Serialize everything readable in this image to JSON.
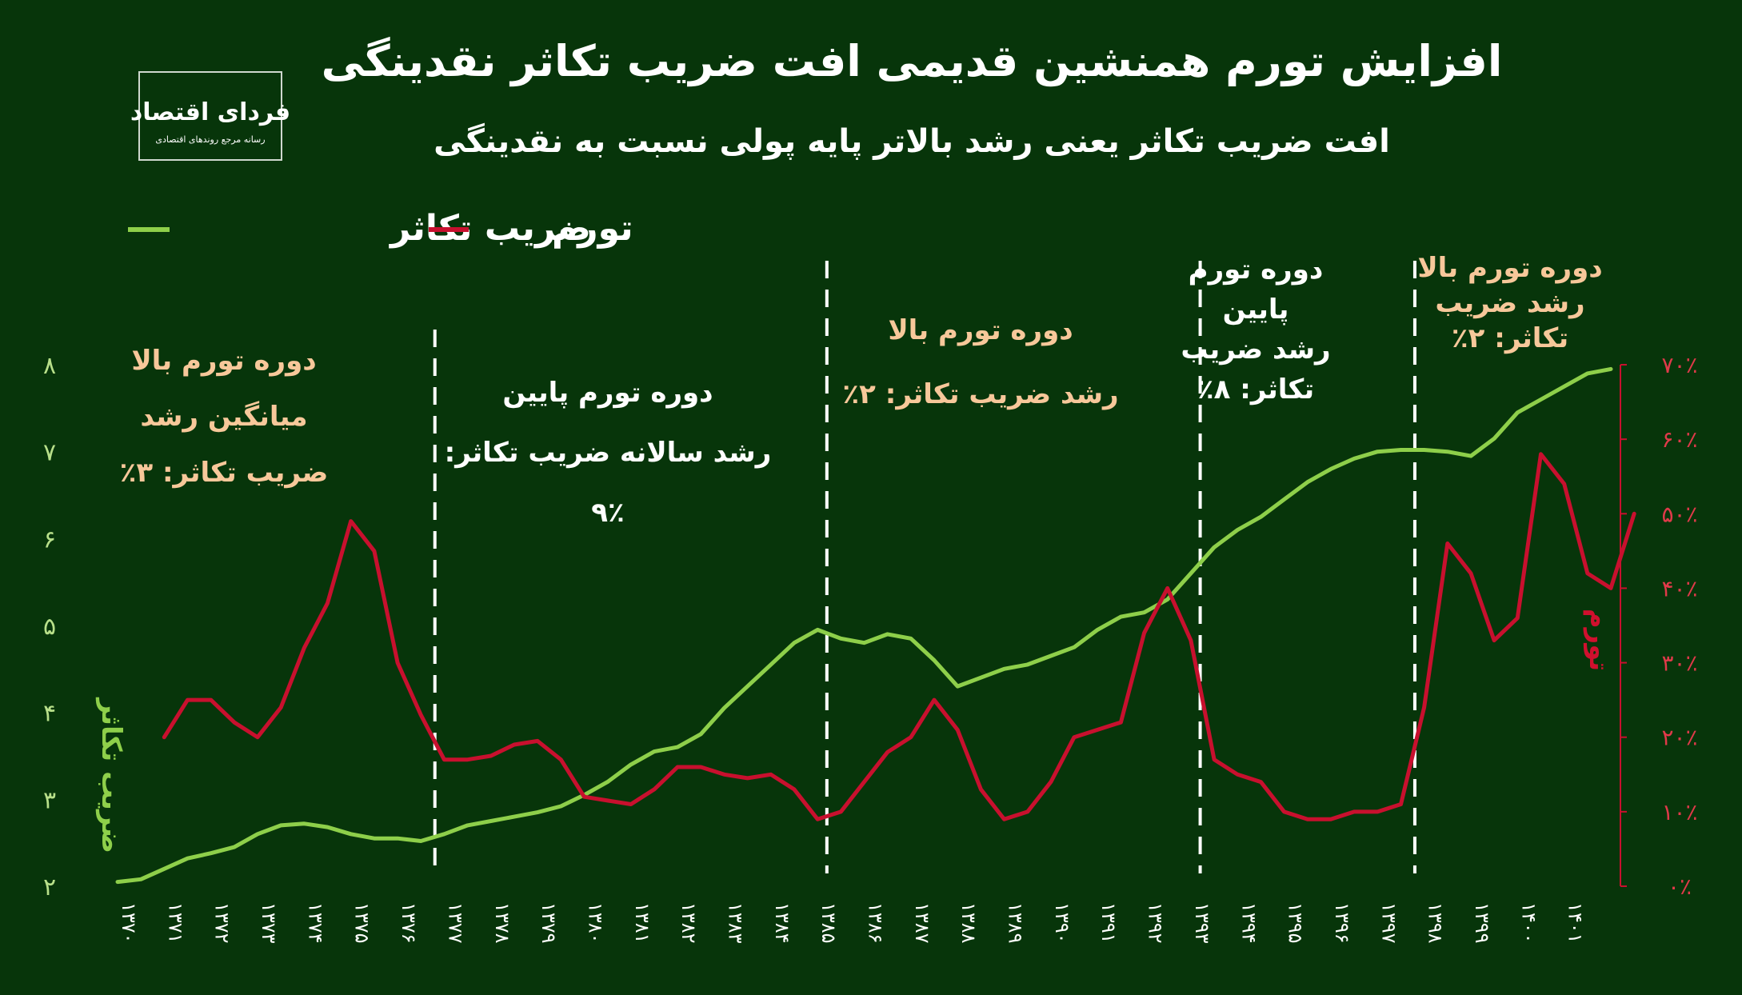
{
  "chart_data": {
    "type": "line",
    "title": "افزایش تورم همنشین قدیمی افت ضریب تکاثر نقدینگی",
    "subtitle": "افت ضریب تکاثر یعنی رشد بالاتر پایه پولی نسبت به نقدینگی",
    "logo_text": "فردای اقتصاد",
    "logo_tagline": "رسانه مرجع روندهای اقتصادی",
    "legend": [
      {
        "name": "ضریب تکاثر",
        "color": "#8ecf4a"
      },
      {
        "name": "تورم",
        "color": "#c8102e"
      }
    ],
    "ylabel_left": "ضریب تکاثر",
    "ylabel_right": "تورم",
    "ylim_left": [
      2,
      8
    ],
    "ylim_right": [
      0,
      70
    ],
    "left_ticks": [
      "۲",
      "۳",
      "۴",
      "۵",
      "۶",
      "۷",
      "۸"
    ],
    "right_ticks": [
      "۰٪",
      "۱۰٪",
      "۲۰٪",
      "۳۰٪",
      "۴۰٪",
      "۵۰٪",
      "۶۰٪",
      "۷۰٪"
    ],
    "x_ticks": [
      "۱۳۷۰",
      "۱۳۷۱",
      "۱۳۷۲",
      "۱۳۷۳",
      "۱۳۷۴",
      "۱۳۷۵",
      "۱۳۷۶",
      "۱۳۷۷",
      "۱۳۷۸",
      "۱۳۷۹",
      "۱۳۸۰",
      "۱۳۸۱",
      "۱۳۸۲",
      "۱۳۸۳",
      "۱۳۸۴",
      "۱۳۸۵",
      "۱۳۸۶",
      "۱۳۸۷",
      "۱۳۸۸",
      "۱۳۸۹",
      "۱۳۹۰",
      "۱۳۹۱",
      "۱۳۹۲",
      "۱۳۹۳",
      "۱۳۹۴",
      "۱۳۹۵",
      "۱۳۹۶",
      "۱۳۹۷",
      "۱۳۹۸",
      "۱۳۹۹",
      "۱۴۰۰",
      "۱۴۰۱"
    ],
    "x_range": [
      1370,
      1402
    ],
    "series": [
      {
        "name": "ضریب تکاثر",
        "color": "#8ecf4a",
        "axis": "left",
        "points": [
          [
            1370,
            2.05
          ],
          [
            1370.5,
            2.08
          ],
          [
            1371,
            2.2
          ],
          [
            1371.5,
            2.32
          ],
          [
            1372,
            2.38
          ],
          [
            1372.5,
            2.45
          ],
          [
            1373,
            2.6
          ],
          [
            1373.5,
            2.7
          ],
          [
            1374,
            2.72
          ],
          [
            1374.5,
            2.68
          ],
          [
            1375,
            2.6
          ],
          [
            1375.5,
            2.55
          ],
          [
            1376,
            2.55
          ],
          [
            1376.5,
            2.52
          ],
          [
            1377,
            2.6
          ],
          [
            1377.5,
            2.7
          ],
          [
            1378,
            2.75
          ],
          [
            1378.5,
            2.8
          ],
          [
            1379,
            2.85
          ],
          [
            1379.5,
            2.92
          ],
          [
            1380,
            3.05
          ],
          [
            1380.5,
            3.2
          ],
          [
            1381,
            3.4
          ],
          [
            1381.5,
            3.55
          ],
          [
            1382,
            3.6
          ],
          [
            1382.5,
            3.75
          ],
          [
            1383,
            4.05
          ],
          [
            1383.5,
            4.3
          ],
          [
            1384,
            4.55
          ],
          [
            1384.5,
            4.8
          ],
          [
            1385,
            4.95
          ],
          [
            1385.5,
            4.85
          ],
          [
            1386,
            4.8
          ],
          [
            1386.5,
            4.9
          ],
          [
            1387,
            4.85
          ],
          [
            1387.5,
            4.6
          ],
          [
            1388,
            4.3
          ],
          [
            1388.5,
            4.4
          ],
          [
            1389,
            4.5
          ],
          [
            1389.5,
            4.55
          ],
          [
            1390,
            4.65
          ],
          [
            1390.5,
            4.75
          ],
          [
            1391,
            4.95
          ],
          [
            1391.5,
            5.1
          ],
          [
            1392,
            5.15
          ],
          [
            1392.5,
            5.3
          ],
          [
            1393,
            5.6
          ],
          [
            1393.5,
            5.9
          ],
          [
            1394,
            6.1
          ],
          [
            1394.5,
            6.25
          ],
          [
            1395,
            6.45
          ],
          [
            1395.5,
            6.65
          ],
          [
            1396,
            6.8
          ],
          [
            1396.5,
            6.92
          ],
          [
            1397,
            7.0
          ],
          [
            1397.5,
            7.02
          ],
          [
            1398,
            7.02
          ],
          [
            1398.5,
            7.0
          ],
          [
            1399,
            6.95
          ],
          [
            1399.5,
            7.15
          ],
          [
            1400,
            7.45
          ],
          [
            1400.5,
            7.6
          ],
          [
            1401,
            7.75
          ],
          [
            1401.5,
            7.9
          ],
          [
            1402,
            7.95
          ]
        ]
      },
      {
        "name": "تورم",
        "color": "#c8102e",
        "axis": "right",
        "points": [
          [
            1371,
            20
          ],
          [
            1371.5,
            25
          ],
          [
            1372,
            25
          ],
          [
            1372.5,
            22
          ],
          [
            1373,
            20
          ],
          [
            1373.5,
            24
          ],
          [
            1374,
            32
          ],
          [
            1374.5,
            38
          ],
          [
            1375,
            49
          ],
          [
            1375.5,
            45
          ],
          [
            1376,
            30
          ],
          [
            1376.5,
            23
          ],
          [
            1377,
            17
          ],
          [
            1377.5,
            17
          ],
          [
            1378,
            17.5
          ],
          [
            1378.5,
            19
          ],
          [
            1379,
            19.5
          ],
          [
            1379.5,
            17
          ],
          [
            1380,
            12
          ],
          [
            1380.5,
            11.5
          ],
          [
            1381,
            11
          ],
          [
            1381.5,
            13
          ],
          [
            1382,
            16
          ],
          [
            1382.5,
            16
          ],
          [
            1383,
            15
          ],
          [
            1383.5,
            14.5
          ],
          [
            1384,
            15
          ],
          [
            1384.5,
            13
          ],
          [
            1385,
            9
          ],
          [
            1385.5,
            10
          ],
          [
            1386,
            14
          ],
          [
            1386.5,
            18
          ],
          [
            1387,
            20
          ],
          [
            1387.5,
            25
          ],
          [
            1388,
            21
          ],
          [
            1388.5,
            13
          ],
          [
            1389,
            9
          ],
          [
            1389.5,
            10
          ],
          [
            1390,
            14
          ],
          [
            1390.5,
            20
          ],
          [
            1391,
            21
          ],
          [
            1391.5,
            22
          ],
          [
            1392,
            34
          ],
          [
            1392.5,
            40
          ],
          [
            1393,
            33
          ],
          [
            1393.5,
            17
          ],
          [
            1394,
            15
          ],
          [
            1394.5,
            14
          ],
          [
            1395,
            10
          ],
          [
            1395.5,
            9
          ],
          [
            1396,
            9
          ],
          [
            1396.5,
            10
          ],
          [
            1397,
            10
          ],
          [
            1397.5,
            11
          ],
          [
            1398,
            24
          ],
          [
            1398.5,
            46
          ],
          [
            1399,
            42
          ],
          [
            1399.5,
            33
          ],
          [
            1400,
            36
          ],
          [
            1400.5,
            58
          ],
          [
            1401,
            54
          ],
          [
            1401.5,
            42
          ],
          [
            1402,
            40
          ],
          [
            1402.5,
            50
          ]
        ]
      }
    ],
    "dividers": [
      1376.8,
      1385.2,
      1393.2,
      1397.8
    ],
    "annotations": [
      {
        "lines": [
          "دوره تورم بالا",
          "میانگین رشد",
          "ضریب تکاثر: ۳٪"
        ],
        "color": "orange"
      },
      {
        "lines": [
          "دوره تورم پایین",
          "رشد سالانه ضریب تکاثر:",
          "۹٪"
        ],
        "color": "white"
      },
      {
        "lines": [
          "دوره تورم بالا",
          "رشد ضریب تکاثر: ۲٪"
        ],
        "color": "orange"
      },
      {
        "lines": [
          "دوره تورم",
          "پایین",
          "رشد ضریب",
          "تکاثر: ۸٪"
        ],
        "color": "white"
      },
      {
        "lines": [
          "دوره تورم بالا",
          "رشد ضریب",
          "تکاثر: ۲٪"
        ],
        "color": "orange"
      }
    ],
    "grid": false,
    "legend_position": "top-left"
  }
}
